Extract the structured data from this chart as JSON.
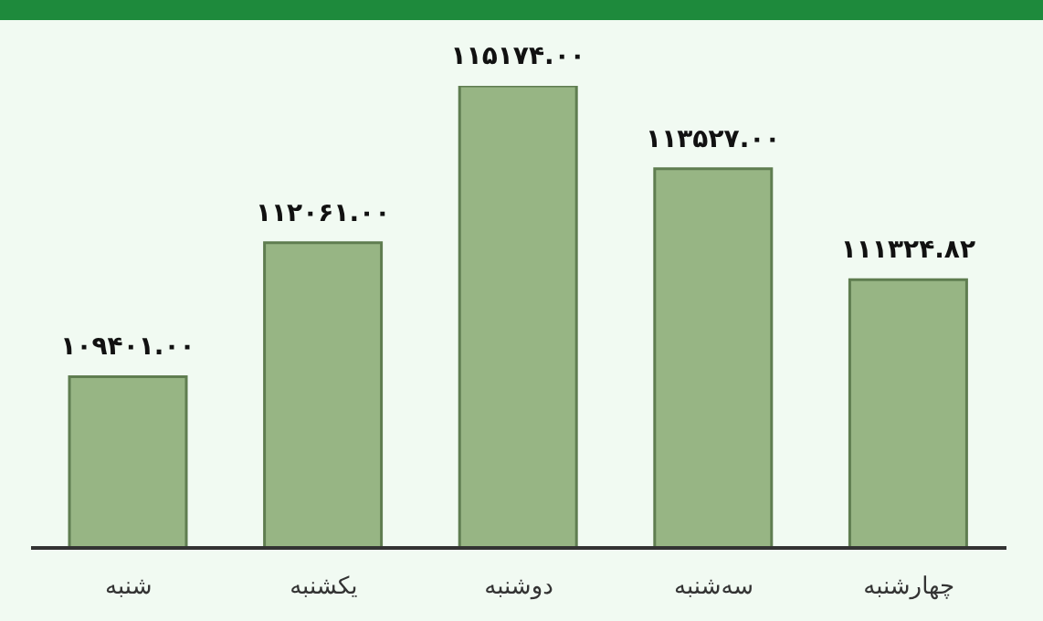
{
  "chart_data": {
    "type": "bar",
    "categories": [
      "شنبه",
      "یکشنبه",
      "دوشنبه",
      "سه‌شنبه",
      "چهارشنبه"
    ],
    "values": [
      109401.0,
      112061.0,
      115174.0,
      113527.0,
      111324.82
    ],
    "value_labels": [
      "۱۰۹۴۰۱.۰۰",
      "۱۱۲۰۶۱.۰۰",
      "۱۱۵۱۷۴.۰۰",
      "۱۱۳۵۲۷.۰۰",
      "۱۱۱۳۲۴.۸۲"
    ],
    "color": "#97b584",
    "ylim": [
      106000,
      115174
    ],
    "tick_labels": "x"
  }
}
